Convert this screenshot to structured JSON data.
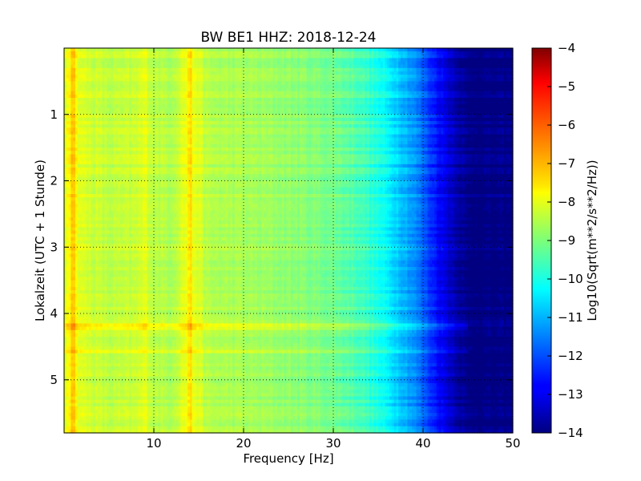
{
  "chart_data": {
    "type": "heatmap",
    "title": "BW BE1 HHZ: 2018-12-24",
    "xlabel": "Frequency [Hz]",
    "ylabel": "Lokalzeit (UTC + 1 Stunde)",
    "colorbar_label": "Log10(Sqrt(m**2/s**2/Hz))",
    "xlim": [
      0,
      50
    ],
    "ylim": [
      5.8,
      0
    ],
    "x_ticks": [
      10,
      20,
      30,
      40,
      50
    ],
    "y_ticks": [
      1,
      2,
      3,
      4,
      5
    ],
    "grid": true,
    "colormap": "jet",
    "color_range": [
      -14,
      -4
    ],
    "colorbar_ticks": [
      -4,
      -5,
      -6,
      -7,
      -8,
      -9,
      -10,
      -11,
      -12,
      -13,
      -14
    ],
    "colorbar_tick_labels": [
      "−4",
      "−5",
      "−6",
      "−7",
      "−8",
      "−9",
      "−10",
      "−11",
      "−12",
      "−13",
      "−14"
    ],
    "spectrum_profile": {
      "frequency_hz": [
        0,
        0.5,
        1,
        2,
        5,
        8,
        9,
        10,
        12,
        13.5,
        14.5,
        16,
        20,
        25,
        30,
        33,
        35,
        37,
        39,
        40,
        41,
        42,
        43,
        44,
        45,
        50
      ],
      "log10_amplitude": [
        -8.2,
        -7.6,
        -7.6,
        -8.1,
        -8.4,
        -8.3,
        -8.0,
        -8.4,
        -8.5,
        -7.9,
        -7.9,
        -8.5,
        -8.6,
        -8.8,
        -9.1,
        -9.5,
        -10.0,
        -10.6,
        -11.3,
        -11.8,
        -12.3,
        -12.8,
        -13.2,
        -13.6,
        -14.0,
        -14.0
      ]
    },
    "features": [
      {
        "kind": "horizontal_band",
        "time": 4.2,
        "log10_delta": 0.5
      },
      {
        "kind": "horizontal_band",
        "time": 4.57,
        "log10_delta": 0.4
      },
      {
        "kind": "vertical_band",
        "frequency_hz": 1.0,
        "log10_delta": 0.5
      },
      {
        "kind": "vertical_band",
        "frequency_hz": 14.0,
        "log10_delta": 0.4
      }
    ]
  }
}
